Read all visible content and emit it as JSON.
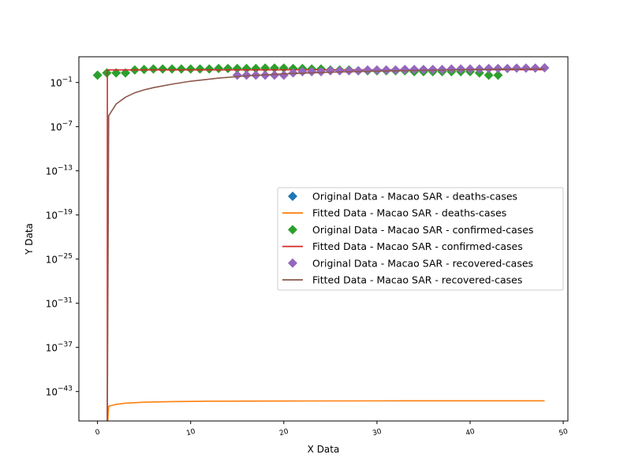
{
  "chart_data": {
    "type": "scatter",
    "xlabel": "X Data",
    "ylabel": "Y Data",
    "xlim": [
      -2,
      50.5
    ],
    "ylim_log10": [
      -47,
      2.5
    ],
    "y_scale": "log",
    "x_ticks": [
      0,
      10,
      20,
      30,
      40,
      50
    ],
    "y_ticks": [
      {
        "exp": -1,
        "label": "10",
        "sup": "−1"
      },
      {
        "exp": -7,
        "label": "10",
        "sup": "−7"
      },
      {
        "exp": -13,
        "label": "10",
        "sup": "−13"
      },
      {
        "exp": -19,
        "label": "10",
        "sup": "−19"
      },
      {
        "exp": -25,
        "label": "10",
        "sup": "−25"
      },
      {
        "exp": -31,
        "label": "10",
        "sup": "−31"
      },
      {
        "exp": -37,
        "label": "10",
        "sup": "−37"
      },
      {
        "exp": -43,
        "label": "10",
        "sup": "−43"
      }
    ],
    "legend_position": "center-right",
    "grid": false,
    "series": [
      {
        "name": "Original Data - Macao SAR - deaths-cases",
        "kind": "points",
        "color": "#1f77b4",
        "x": [],
        "y": []
      },
      {
        "name": "Fitted Data - Macao SAR - deaths-cases",
        "kind": "line",
        "color": "#ff7f0e",
        "x": [
          1.05,
          1.2,
          2,
          3,
          5,
          8,
          12,
          20,
          30,
          40,
          48
        ],
        "y": [
          1e-48,
          1e-45,
          1.8e-45,
          2.6e-45,
          3.6e-45,
          4.3e-45,
          4.8e-45,
          5.2e-45,
          5.4e-45,
          5.5e-45,
          5.5e-45
        ]
      },
      {
        "name": "Original Data - Macao SAR - confirmed-cases",
        "kind": "points",
        "color": "#2ca02c",
        "x": [
          0,
          1,
          2,
          3,
          4,
          5,
          6,
          7,
          8,
          9,
          10,
          11,
          12,
          13,
          14,
          15,
          16,
          17,
          18,
          19,
          20,
          21,
          22,
          23,
          24,
          25,
          26,
          27,
          28,
          29,
          30,
          31,
          32,
          33,
          34,
          35,
          36,
          37,
          38,
          39,
          40,
          41,
          42,
          43
        ],
        "y": [
          1,
          2,
          2,
          2,
          5,
          6,
          7,
          7,
          7,
          7,
          7,
          7,
          7,
          8,
          8,
          8,
          8,
          8,
          9,
          9,
          9,
          8,
          8,
          7,
          7,
          5,
          5,
          5,
          4,
          4,
          4,
          4,
          4,
          4,
          3,
          3,
          3,
          3,
          3,
          3,
          3,
          2,
          1,
          1
        ]
      },
      {
        "name": "Fitted Data - Macao SAR - confirmed-cases",
        "kind": "line",
        "color": "#d62728",
        "x": [
          1.05,
          1.06,
          1.2,
          2,
          5,
          10,
          20,
          30,
          40,
          48
        ],
        "y": [
          1e-48,
          5,
          5.1,
          5.1,
          5.2,
          5.2,
          5.3,
          5.4,
          5.5,
          5.5
        ]
      },
      {
        "name": "Original Data - Macao SAR - recovered-cases",
        "kind": "points",
        "color": "#9467bd",
        "x": [
          15,
          16,
          17,
          18,
          19,
          20,
          21,
          22,
          23,
          24,
          25,
          26,
          27,
          28,
          29,
          30,
          31,
          32,
          33,
          34,
          35,
          36,
          37,
          38,
          39,
          40,
          41,
          42,
          43,
          44,
          45,
          46,
          47,
          48
        ],
        "y": [
          1,
          1,
          1,
          1,
          1,
          1,
          2,
          3,
          3,
          3,
          4,
          4,
          4,
          4,
          5,
          5,
          5,
          5,
          6,
          6,
          6,
          6,
          6,
          7,
          7,
          7,
          7,
          8,
          8,
          8,
          9,
          9,
          9,
          10
        ]
      },
      {
        "name": "Fitted Data - Macao SAR - recovered-cases",
        "kind": "line",
        "color": "#8c564b",
        "x": [
          1.05,
          1.2,
          2,
          3,
          4,
          5,
          6,
          8,
          10,
          13,
          16,
          20,
          25,
          30,
          35,
          40,
          45,
          48
        ],
        "y": [
          1e-48,
          3e-06,
          0.00012,
          0.001,
          0.004,
          0.01,
          0.02,
          0.06,
          0.15,
          0.4,
          0.8,
          1.5,
          2.5,
          3.5,
          4.5,
          5.5,
          6.5,
          7
        ]
      }
    ]
  }
}
